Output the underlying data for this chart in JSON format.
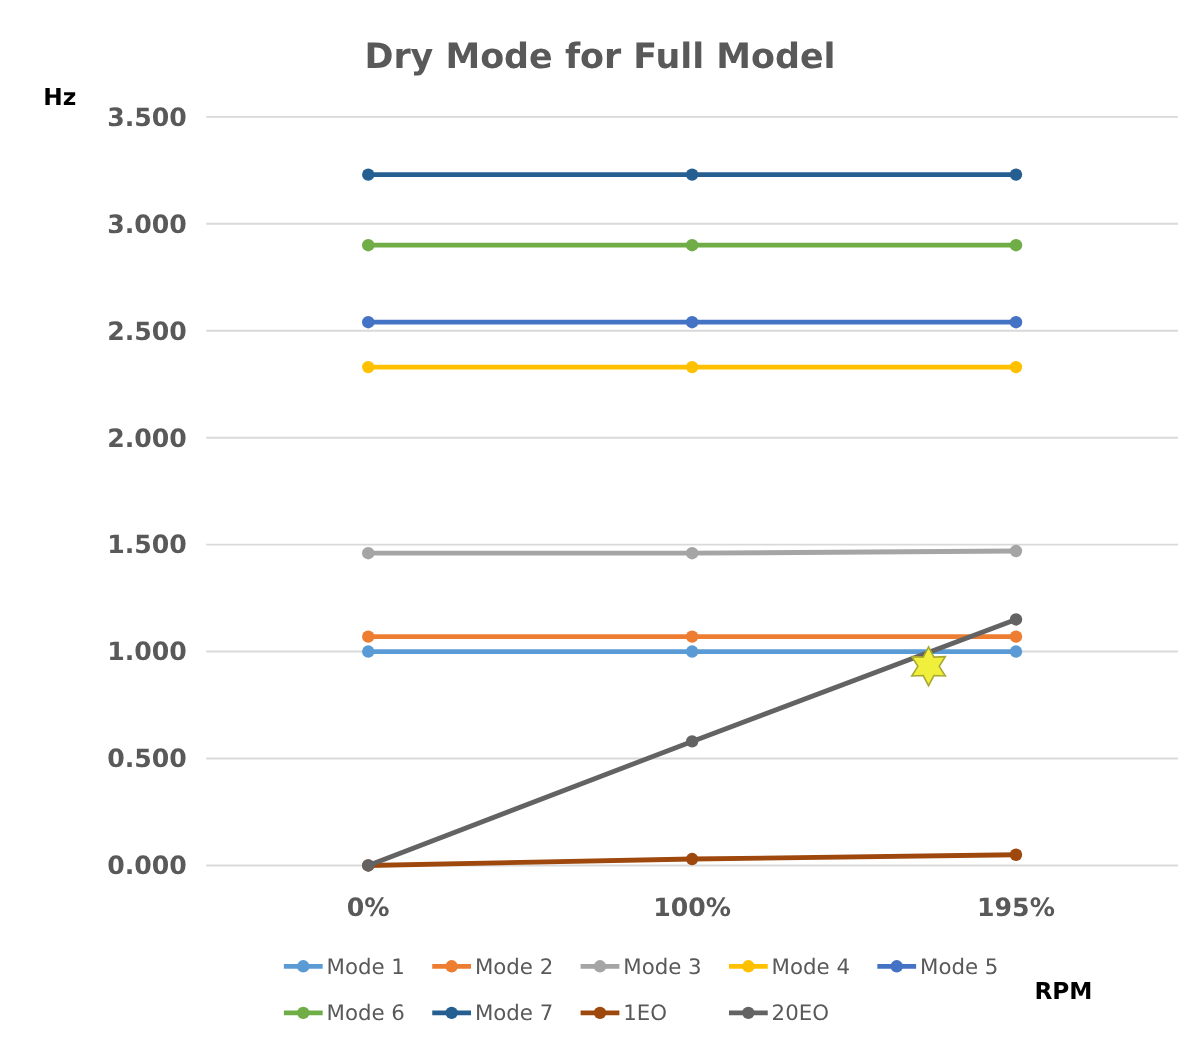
{
  "chart_data": {
    "type": "line",
    "title": "Dry Mode for Full Model",
    "xlabel": "RPM",
    "ylabel": "Hz",
    "categories": [
      "0%",
      "100%",
      "195%"
    ],
    "series": [
      {
        "name": "Mode 1",
        "color": "#5b9bd5",
        "values": [
          1.0,
          1.0,
          1.0
        ]
      },
      {
        "name": "Mode 2",
        "color": "#ed7d31",
        "values": [
          1.07,
          1.07,
          1.07
        ]
      },
      {
        "name": "Mode 3",
        "color": "#a5a5a5",
        "values": [
          1.46,
          1.46,
          1.47
        ]
      },
      {
        "name": "Mode 4",
        "color": "#ffc000",
        "values": [
          2.33,
          2.33,
          2.33
        ]
      },
      {
        "name": "Mode 5",
        "color": "#4472c4",
        "values": [
          2.54,
          2.54,
          2.54
        ]
      },
      {
        "name": "Mode 6",
        "color": "#70ad47",
        "values": [
          2.9,
          2.9,
          2.9
        ]
      },
      {
        "name": "Mode 7",
        "color": "#255e91",
        "values": [
          3.23,
          3.23,
          3.23
        ]
      },
      {
        "name": "1EO",
        "color": "#9e480e",
        "values": [
          0,
          0.03,
          0.05
        ]
      },
      {
        "name": "20EO",
        "color": "#636363",
        "values": [
          0,
          0.58,
          1.15
        ]
      }
    ],
    "ylim": [
      0,
      3.5
    ],
    "yticks": [
      {
        "value": 0,
        "label": "0.000"
      },
      {
        "value": 0.5,
        "label": "0.500"
      },
      {
        "value": 1,
        "label": "1.000"
      },
      {
        "value": 1.5,
        "label": "1.500"
      },
      {
        "value": 2,
        "label": "2.000"
      },
      {
        "value": 2.5,
        "label": "2.500"
      },
      {
        "value": 3,
        "label": "3.000"
      },
      {
        "value": 3.5,
        "label": "3.500"
      }
    ],
    "grid": "y",
    "legend": "bottom",
    "marker": "circle",
    "line_style": "solid"
  }
}
